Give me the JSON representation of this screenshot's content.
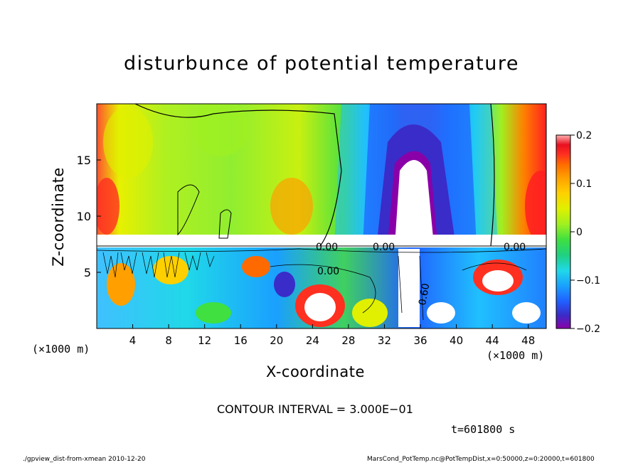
{
  "chart_data": {
    "type": "heatmap",
    "title": "disturbunce of potential temperature",
    "xlabel": "X-coordinate",
    "ylabel": "Z-coordinate",
    "x_unit_label": "(×1000 m)",
    "xlim": [
      0,
      50
    ],
    "ylim": [
      0,
      20
    ],
    "x_ticks": [
      "4",
      "8",
      "12",
      "16",
      "20",
      "24",
      "28",
      "32",
      "36",
      "40",
      "44",
      "48"
    ],
    "y_ticks": [
      "5",
      "10",
      "15"
    ],
    "colorbar": {
      "range": [
        -0.2,
        0.2
      ],
      "ticks": [
        "0.2",
        "0.1",
        "0",
        "−0.1",
        "−0.2"
      ],
      "colors": [
        "#8a00a8",
        "#3a2cc8",
        "#2060ff",
        "#1aa0ff",
        "#20d8e8",
        "#20d080",
        "#40e040",
        "#a0f020",
        "#e0f000",
        "#ffd000",
        "#ffa000",
        "#ff6a00",
        "#ff3020",
        "#e81020",
        "#ffb0b0"
      ]
    },
    "contour_labels": [
      "0.00",
      "0.00",
      "0.00",
      "0.00",
      "0.60"
    ],
    "contour_interval_text": "CONTOUR INTERVAL = 3.000E−01",
    "time_text": "t=601800 s"
  },
  "footer": {
    "left": "./gpview_dist-from-xmean   2010-12-20",
    "right": "MarsCond_PotTemp.nc@PotTempDist,x=0:50000,z=0:20000,t=601800"
  }
}
